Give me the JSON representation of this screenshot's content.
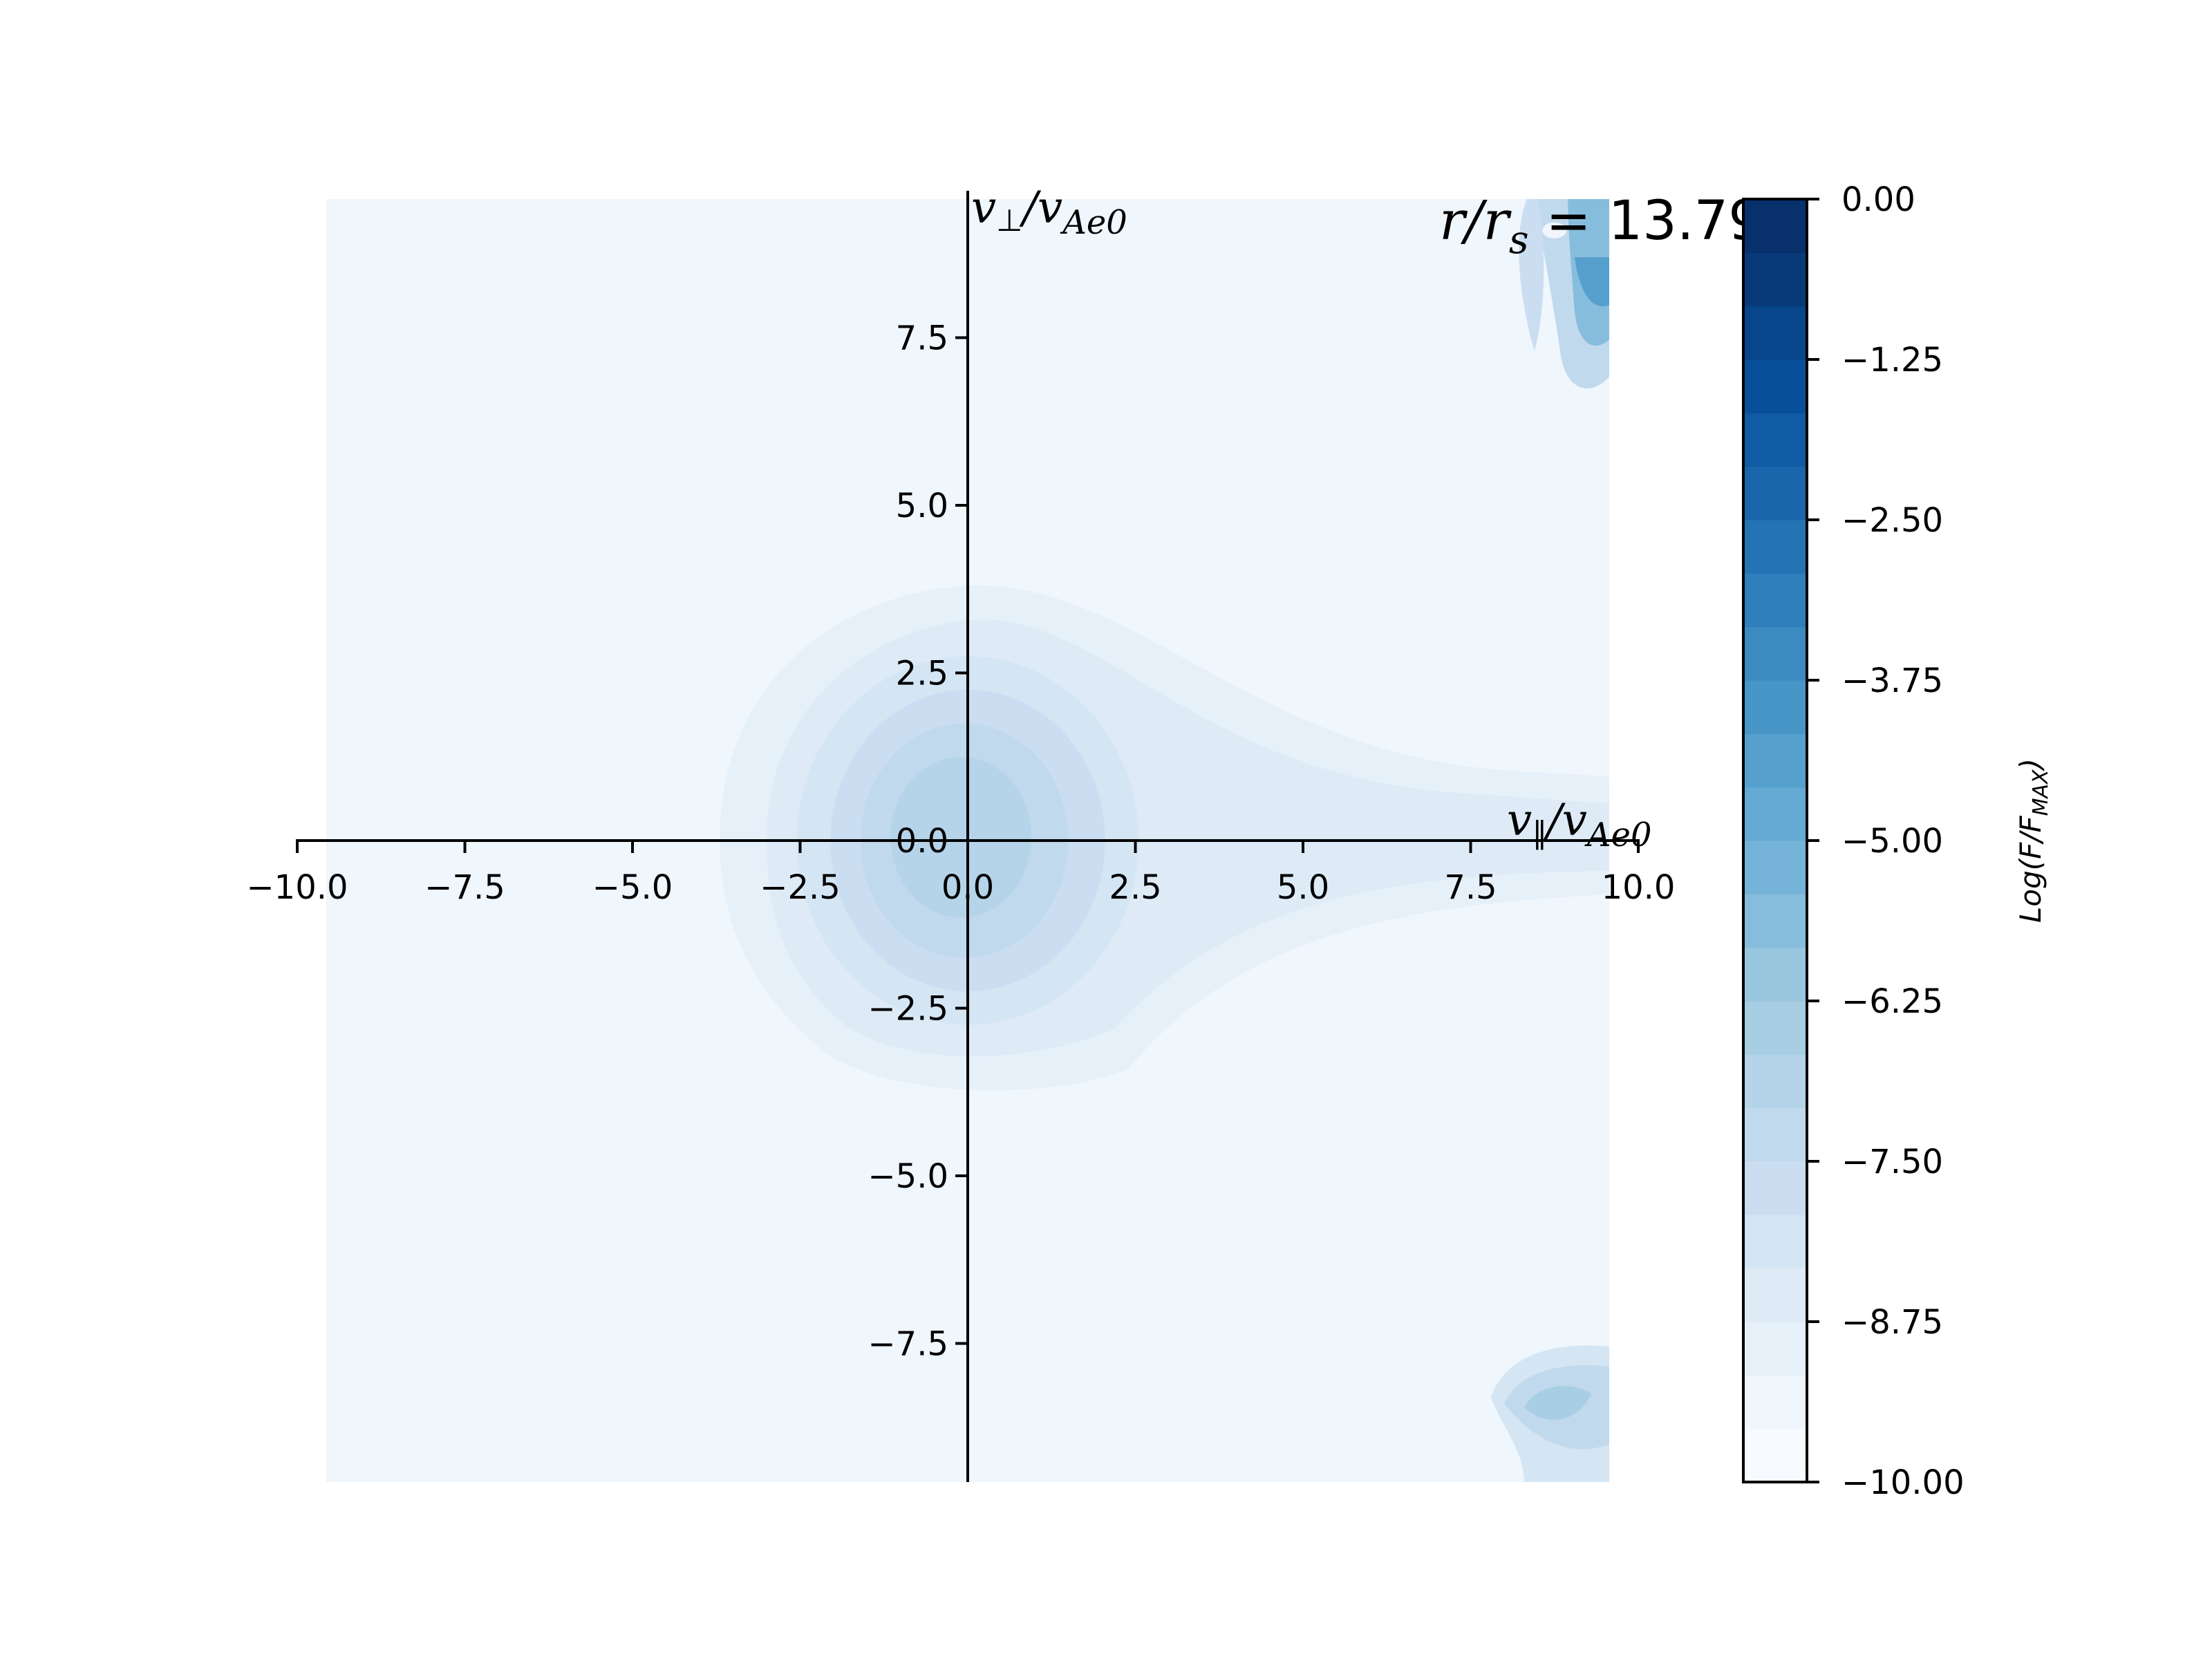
{
  "chart_data": {
    "type": "heatmap",
    "subtype": "filled-contour",
    "annotation": {
      "variable": "r/r",
      "subscript": "s",
      "equals": " = ",
      "value": "13.79"
    },
    "xlabel": {
      "main": "v",
      "sub1": "∥",
      "sep": "/v",
      "sub2": "Ae0"
    },
    "ylabel": {
      "main": "v",
      "sub1": "⊥",
      "sep": "/v",
      "sub2": "Ae0"
    },
    "xlim": [
      -10,
      10
    ],
    "ylim": [
      -10,
      10
    ],
    "data_extent": {
      "x": [
        -9.6,
        9.6
      ],
      "y": [
        -9.6,
        9.6
      ]
    },
    "xticks": [
      -10.0,
      -7.5,
      -5.0,
      -2.5,
      0.0,
      2.5,
      5.0,
      7.5,
      10.0
    ],
    "xtick_labels": [
      "−10.0",
      "−7.5",
      "−5.0",
      "−2.5",
      "0.0",
      "2.5",
      "5.0",
      "7.5",
      "10.0"
    ],
    "yticks": [
      -7.5,
      -5.0,
      -2.5,
      0.0,
      2.5,
      5.0,
      7.5
    ],
    "ytick_labels": [
      "−7.5",
      "−5.0",
      "−2.5",
      "0.0",
      "2.5",
      "5.0",
      "7.5"
    ],
    "spines": "centered at origin",
    "colormap": "Blues",
    "colorbar": {
      "label": {
        "pre": "Log(F/F",
        "sub": "MAX",
        "post": ")"
      },
      "range": [
        -10,
        0
      ],
      "ticks": [
        0.0,
        -1.25,
        -2.5,
        -3.75,
        -5.0,
        -6.25,
        -7.5,
        -8.75,
        -10.0
      ],
      "tick_labels": [
        "0.00",
        "−1.25",
        "−2.50",
        "−3.75",
        "−5.00",
        "−6.25",
        "−7.50",
        "−8.75",
        "−10.00"
      ],
      "levels": 24
    },
    "colors": [
      "#f7fbff",
      "#eff6fc",
      "#e6f0f9",
      "#deebf7",
      "#d4e5f4",
      "#cbdef1",
      "#c1d9ed",
      "#b6d4e9",
      "#a8cee4",
      "#98c6df",
      "#87bddc",
      "#75b4d8",
      "#65aad4",
      "#56a0ce",
      "#4896c8",
      "#3b8bc2",
      "#2f7fbc",
      "#2473b5",
      "#1966ad",
      "#105ba4",
      "#084f99",
      "#08458a",
      "#083a7a",
      "#08306b"
    ],
    "features": [
      {
        "name": "core",
        "x": 0,
        "y": 0,
        "note": "maximum near -7.8 to -8.1 at origin; outer contour ~ -9.6"
      },
      {
        "name": "parallel tail",
        "x": [
          3,
          9.6
        ],
        "y": 0,
        "note": "strahl extending along +v∥"
      },
      {
        "name": "top-right region",
        "x": [
          8,
          9.6
        ],
        "y": [
          6.8,
          9.6
        ],
        "note": "up to ~ -6.3"
      },
      {
        "name": "bottom-right region",
        "x": [
          7.8,
          9.6
        ],
        "y": [
          -9.6,
          -7.5
        ],
        "note": "up to ~ -7.3"
      }
    ],
    "grid": false
  }
}
